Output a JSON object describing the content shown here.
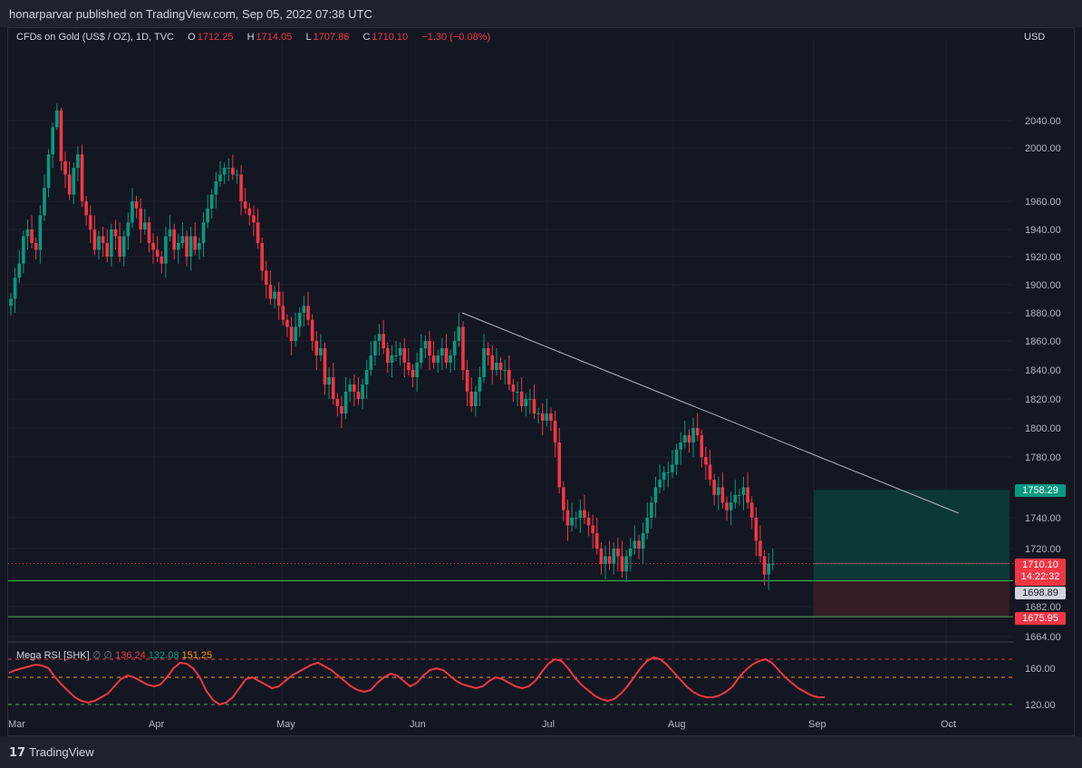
{
  "header": {
    "publisher_text": "honarparvar published on TradingView.com, Sep 05, 2022 07:38 UTC"
  },
  "legend": {
    "symbol": "CFDs on Gold (US$ / OZ), 1D, TVC",
    "o_label": "O",
    "o_value": "1712.25",
    "h_label": "H",
    "h_value": "1714.05",
    "l_label": "L",
    "l_value": "1707.86",
    "c_label": "C",
    "c_value": "1710.10",
    "change": "−1.30 (−0.08%)"
  },
  "currency": "USD",
  "rsi_legend": {
    "name": "Mega RSI [SHK]",
    "v1": "136.24",
    "v2": "132.08",
    "v3": "151.25"
  },
  "tags": {
    "tp": "1758.29",
    "last": "1710.10",
    "countdown": "14:22:32",
    "entry": "1698.89",
    "stop": "1675.95"
  },
  "footer": {
    "logo_text": "TradingView"
  },
  "colors": {
    "up": "#089981",
    "down": "#f23645",
    "grid": "#1e222d",
    "rsi_line": "#f23645",
    "rsi_signal": "#089981",
    "rsi_slow": "#ff9800",
    "tp_zone": "#0b3c39",
    "sl_zone": "#3a1e24"
  },
  "chart_data": {
    "type": "candlestick",
    "title": "CFDs on Gold (US$ / OZ), 1D, TVC",
    "y_ticks": [
      2040,
      2000,
      1960,
      1940,
      1920,
      1900,
      1880,
      1860,
      1840,
      1820,
      1800,
      1780,
      1740,
      1720,
      1682,
      1664
    ],
    "y_tick_labels": [
      "2040.00",
      "2000.00",
      "1960.00",
      "1940.00",
      "1920.00",
      "1900.00",
      "1880.00",
      "1860.00",
      "1840.00",
      "1820.00",
      "1800.00",
      "1780.00",
      "1740.00",
      "1720.00",
      "1682.00",
      "1664.00"
    ],
    "x_labels": [
      "Mar",
      "Apr",
      "May",
      "Jun",
      "Jul",
      "Aug",
      "Sep",
      "Oct"
    ],
    "closes": [
      1890,
      1905,
      1915,
      1935,
      1940,
      1930,
      1925,
      1950,
      1970,
      1995,
      2030,
      2055,
      1990,
      1980,
      1965,
      1985,
      1995,
      1960,
      1950,
      1940,
      1925,
      1935,
      1930,
      1920,
      1940,
      1935,
      1920,
      1935,
      1945,
      1960,
      1955,
      1940,
      1945,
      1930,
      1925,
      1920,
      1915,
      1935,
      1940,
      1925,
      1930,
      1935,
      1920,
      1935,
      1925,
      1930,
      1945,
      1955,
      1965,
      1975,
      1980,
      1985,
      1985,
      1980,
      1980,
      1960,
      1955,
      1950,
      1945,
      1930,
      1910,
      1900,
      1890,
      1895,
      1885,
      1875,
      1870,
      1860,
      1870,
      1880,
      1885,
      1875,
      1860,
      1850,
      1855,
      1830,
      1835,
      1820,
      1815,
      1810,
      1825,
      1830,
      1825,
      1820,
      1830,
      1840,
      1850,
      1860,
      1865,
      1855,
      1845,
      1850,
      1850,
      1855,
      1845,
      1840,
      1835,
      1845,
      1855,
      1860,
      1850,
      1845,
      1850,
      1855,
      1845,
      1850,
      1860,
      1870,
      1840,
      1825,
      1815,
      1825,
      1835,
      1855,
      1850,
      1840,
      1845,
      1840,
      1840,
      1830,
      1825,
      1825,
      1815,
      1820,
      1820,
      1810,
      1810,
      1805,
      1810,
      1805,
      1790,
      1760,
      1745,
      1735,
      1740,
      1740,
      1745,
      1740,
      1735,
      1730,
      1720,
      1710,
      1715,
      1710,
      1720,
      1715,
      1705,
      1715,
      1720,
      1725,
      1720,
      1730,
      1740,
      1750,
      1760,
      1765,
      1770,
      1770,
      1775,
      1785,
      1790,
      1795,
      1790,
      1800,
      1795,
      1780,
      1775,
      1765,
      1755,
      1760,
      1750,
      1745,
      1750,
      1755,
      1755,
      1760,
      1750,
      1740,
      1725,
      1715,
      1703,
      1710,
      1710
    ],
    "rsi": {
      "levels": [
        170,
        150,
        120
      ],
      "axis_labels": [
        "160.00",
        "120.00"
      ],
      "series": [
        {
          "values": [
            155,
            158,
            160,
            162,
            164,
            163,
            160,
            150,
            142,
            135,
            128,
            124,
            122,
            124,
            128,
            132,
            140,
            148,
            152,
            150,
            146,
            142,
            140,
            142,
            150,
            160,
            166,
            165,
            160,
            150,
            135,
            125,
            120,
            122,
            128,
            138,
            148,
            150,
            146,
            142,
            138,
            140,
            146,
            152,
            156,
            160,
            164,
            166,
            162,
            158,
            152,
            146,
            140,
            136,
            134,
            136,
            144,
            150,
            154,
            152,
            146,
            140,
            144,
            152,
            158,
            160,
            158,
            152,
            146,
            142,
            140,
            138,
            140,
            146,
            150,
            148,
            144,
            140,
            138,
            140,
            146,
            156,
            165,
            170,
            168,
            160,
            150,
            142,
            136,
            130,
            126,
            124,
            126,
            132,
            140,
            150,
            160,
            168,
            172,
            170,
            164,
            156,
            148,
            140,
            134,
            130,
            128,
            128,
            130,
            134,
            140,
            150,
            158,
            164,
            168,
            170,
            166,
            158,
            150,
            144,
            138,
            134,
            130,
            128,
            128
          ],
          "color": "#f23645"
        }
      ]
    }
  }
}
